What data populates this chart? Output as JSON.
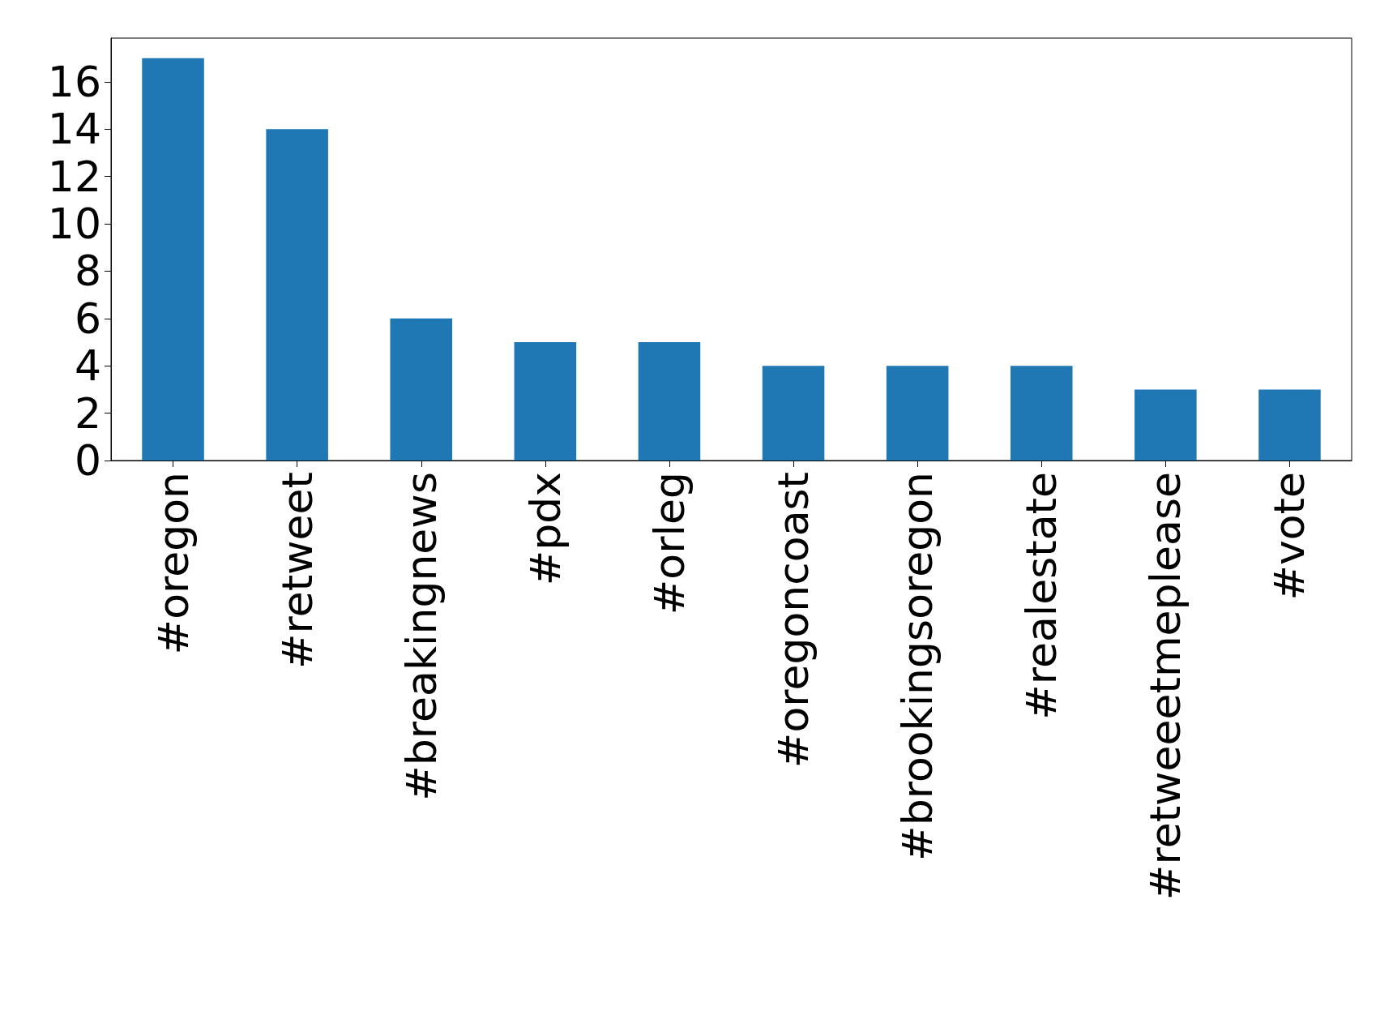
{
  "chart_data": {
    "type": "bar",
    "categories": [
      "#oregon",
      "#retweet",
      "#breakingnews",
      "#pdx",
      "#orleg",
      "#oregoncoast",
      "#brookingsoregon",
      "#realestate",
      "#retweeetmeplease",
      "#vote"
    ],
    "values": [
      17,
      14,
      6,
      5,
      5,
      4,
      4,
      4,
      3,
      3
    ],
    "color": "#1f77b4",
    "ylim": [
      0,
      17.85
    ],
    "yticks": [
      0,
      2,
      4,
      6,
      8,
      10,
      12,
      14,
      16
    ],
    "grid": false
  }
}
